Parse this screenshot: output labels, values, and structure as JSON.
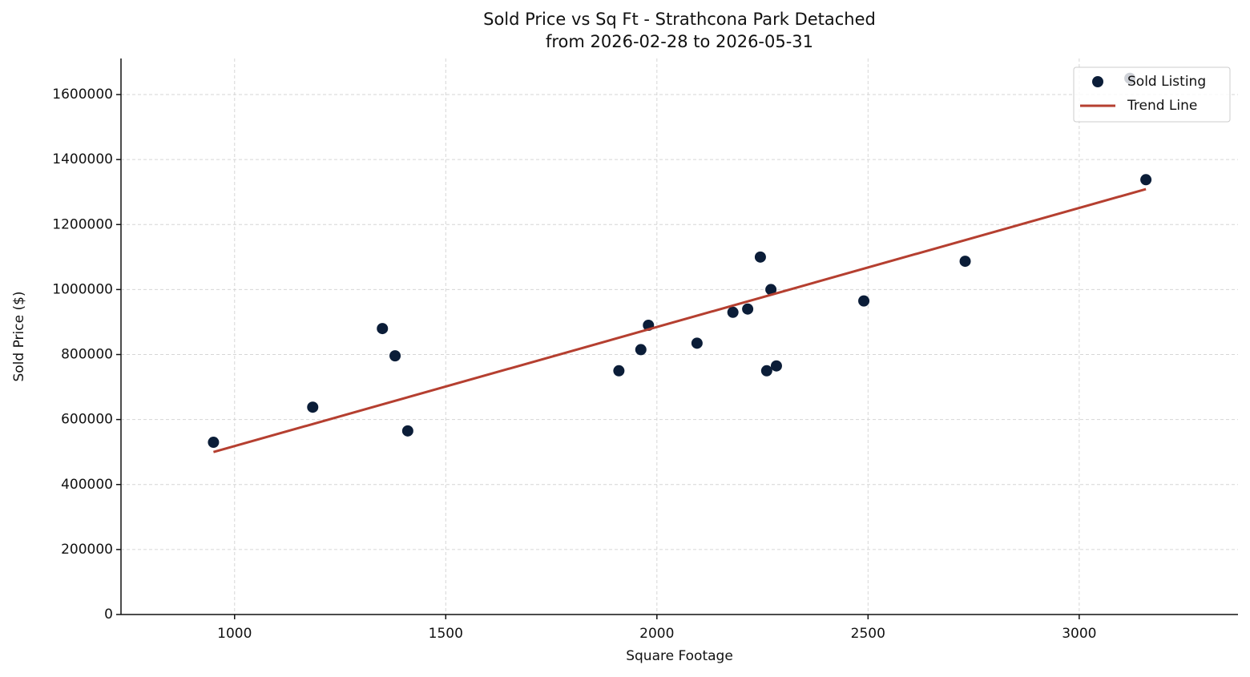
{
  "chart_data": {
    "type": "scatter",
    "title": "Sold Price vs Sq Ft - Strathcona Park Detached",
    "subtitle": "from 2026-02-28 to 2026-05-31",
    "x_label": "Square Footage",
    "y_label": "Sold Price ($)",
    "xlim": [
      731,
      3376
    ],
    "ylim": [
      0,
      1711000
    ],
    "xticks": [
      1000,
      1500,
      2000,
      2500,
      3000
    ],
    "yticks": [
      0,
      200000,
      400000,
      600000,
      800000,
      1000000,
      1200000,
      1400000,
      1600000
    ],
    "grid": true,
    "legend": "upper right",
    "series": [
      {
        "name": "Sold Listing",
        "type": "scatter",
        "color": "#0b1d38",
        "x": [
          950,
          1185,
          1350,
          1380,
          1410,
          1910,
          1962,
          1980,
          2095,
          2180,
          2215,
          2245,
          2260,
          2270,
          2283,
          2490,
          2730,
          3120,
          3158
        ],
        "values": [
          530000,
          638000,
          880000,
          796000,
          565000,
          750000,
          815000,
          890000,
          835000,
          930000,
          940000,
          1100000,
          750000,
          1000000,
          765000,
          965000,
          1087000,
          1650000,
          1338000
        ]
      },
      {
        "name": "Trend Line",
        "type": "line",
        "color": "#b53f30",
        "x": [
          950,
          3158
        ],
        "values": [
          500000,
          1309000
        ]
      }
    ]
  }
}
